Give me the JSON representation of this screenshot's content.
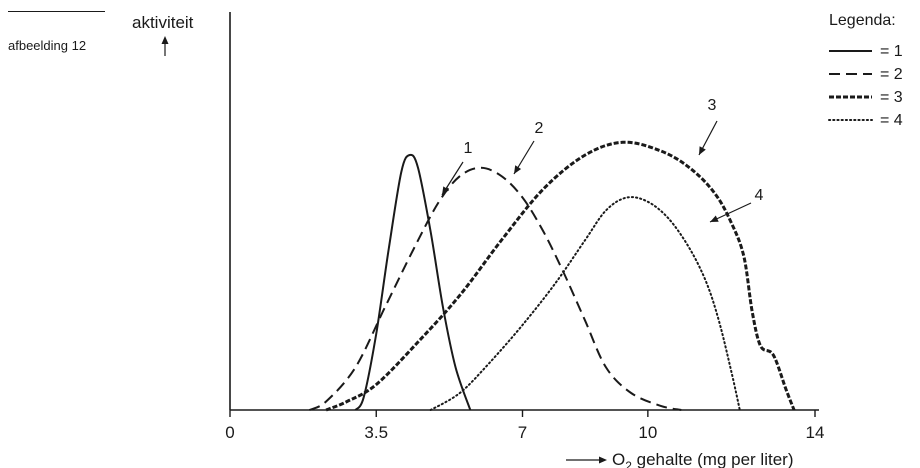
{
  "figure": {
    "label": "afbeelding 12"
  },
  "colors": {
    "ink": "#1a1a1a",
    "background": "#ffffff"
  },
  "chart_data": {
    "type": "line",
    "title": "",
    "ylabel": "aktiviteit",
    "xlabel_prefix": "O",
    "xlabel_subscript": "2",
    "xlabel_suffix": " gehalte (mg per liter)",
    "xlim": [
      0,
      14
    ],
    "ylim": [
      0,
      1
    ],
    "xticks": [
      {
        "value": 0,
        "label": "0"
      },
      {
        "value": 3.5,
        "label": "3.5"
      },
      {
        "value": 7,
        "label": "7"
      },
      {
        "value": 10,
        "label": "10"
      },
      {
        "value": 14,
        "label": "14"
      }
    ],
    "y_ticks_shown": false,
    "legend": {
      "title": "Legenda:",
      "placement": "top-right"
    },
    "series": [
      {
        "name": "1",
        "legend_text": "= 1",
        "dash": "solid",
        "peak_x": 4.3,
        "peak_y": 0.6,
        "points": [
          [
            3.0,
            0.0
          ],
          [
            3.2,
            0.03
          ],
          [
            3.5,
            0.18
          ],
          [
            3.8,
            0.38
          ],
          [
            4.1,
            0.56
          ],
          [
            4.3,
            0.6
          ],
          [
            4.5,
            0.57
          ],
          [
            4.8,
            0.42
          ],
          [
            5.1,
            0.24
          ],
          [
            5.4,
            0.1
          ],
          [
            5.75,
            0.0
          ]
        ]
      },
      {
        "name": "2",
        "legend_text": "= 2",
        "dash": "longdash",
        "peak_x": 6.0,
        "peak_y": 0.57,
        "points": [
          [
            1.9,
            0.0
          ],
          [
            2.3,
            0.02
          ],
          [
            3.0,
            0.1
          ],
          [
            3.7,
            0.24
          ],
          [
            4.4,
            0.38
          ],
          [
            5.0,
            0.49
          ],
          [
            5.5,
            0.55
          ],
          [
            6.0,
            0.57
          ],
          [
            6.5,
            0.55
          ],
          [
            7.0,
            0.5
          ],
          [
            7.5,
            0.42
          ],
          [
            8.0,
            0.32
          ],
          [
            8.5,
            0.21
          ],
          [
            9.0,
            0.1
          ],
          [
            9.6,
            0.04
          ],
          [
            10.3,
            0.01
          ],
          [
            10.8,
            0.0
          ]
        ]
      },
      {
        "name": "3",
        "legend_text": "= 3",
        "dash": "dashdot",
        "peak_x": 9.4,
        "peak_y": 0.63,
        "points": [
          [
            2.3,
            0.0
          ],
          [
            2.8,
            0.02
          ],
          [
            3.5,
            0.06
          ],
          [
            4.5,
            0.16
          ],
          [
            5.5,
            0.27
          ],
          [
            6.5,
            0.4
          ],
          [
            7.5,
            0.52
          ],
          [
            8.5,
            0.6
          ],
          [
            9.4,
            0.63
          ],
          [
            10.3,
            0.61
          ],
          [
            11.0,
            0.57
          ],
          [
            11.6,
            0.51
          ],
          [
            12.0,
            0.44
          ],
          [
            12.3,
            0.36
          ],
          [
            12.5,
            0.23
          ],
          [
            12.7,
            0.15
          ],
          [
            13.0,
            0.13
          ],
          [
            13.3,
            0.05
          ],
          [
            13.5,
            0.0
          ]
        ]
      },
      {
        "name": "4",
        "legend_text": "= 4",
        "dash": "dotted",
        "peak_x": 9.5,
        "peak_y": 0.5,
        "points": [
          [
            4.8,
            0.0
          ],
          [
            5.5,
            0.04
          ],
          [
            6.2,
            0.11
          ],
          [
            7.0,
            0.2
          ],
          [
            7.8,
            0.3
          ],
          [
            8.5,
            0.4
          ],
          [
            9.0,
            0.47
          ],
          [
            9.5,
            0.5
          ],
          [
            10.0,
            0.49
          ],
          [
            10.5,
            0.45
          ],
          [
            11.0,
            0.38
          ],
          [
            11.4,
            0.3
          ],
          [
            11.7,
            0.21
          ],
          [
            12.0,
            0.09
          ],
          [
            12.2,
            0.0
          ]
        ]
      }
    ]
  }
}
